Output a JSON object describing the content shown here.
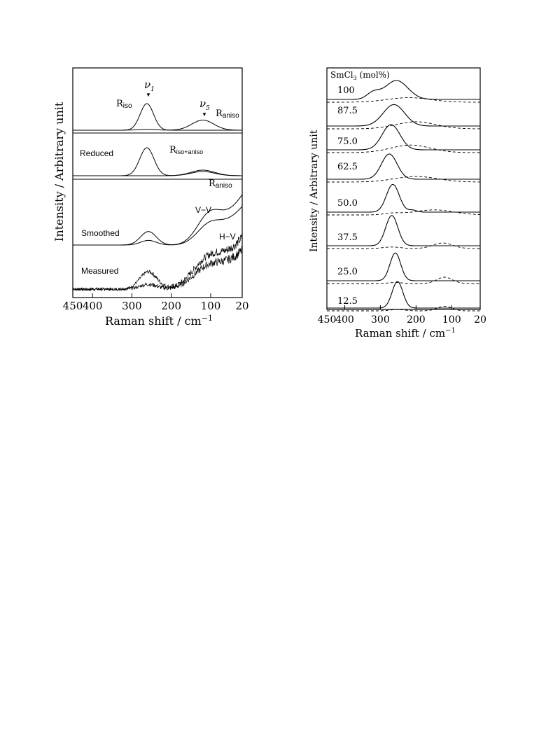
{
  "chart_data": [
    {
      "type": "line",
      "panel": "left",
      "xlabel": "Raman  shift  /  cm",
      "xlabel_sup": "−1",
      "ylabel": "Intensity / Arbitrary unit",
      "xlim": [
        450,
        20
      ],
      "xticks": [
        "450",
        "400",
        "300",
        "200",
        "100",
        "20"
      ],
      "xtick_values": [
        450,
        400,
        300,
        200,
        100,
        20
      ],
      "labels": {
        "nu1": "ν",
        "nu1_sub": "1",
        "nu5": "ν",
        "nu5_sub": "5",
        "riso": "R",
        "riso_sub": "iso",
        "raniso": "R",
        "raniso_sub": "aniso",
        "reduced": "Reduced",
        "risoaniso": "R",
        "risoaniso_sub": "iso+aniso",
        "raniso2": "R",
        "raniso2_sub": "aniso",
        "smoothed": "Smoothed",
        "vv": "V−V",
        "hv": "H−V",
        "measured": "Measured"
      },
      "series": [
        {
          "name": "R_iso",
          "group": "top",
          "peaks": [
            [
              262,
              1.0,
              17
            ]
          ],
          "baseline": 0
        },
        {
          "name": "R_aniso",
          "group": "top",
          "peaks": [
            [
              120,
              0.38,
              28
            ],
            [
              262,
              0.03,
              25
            ]
          ],
          "baseline": 0
        },
        {
          "name": "R_iso+aniso",
          "group": "reduced",
          "peaks": [
            [
              262,
              1.0,
              18
            ],
            [
              120,
              0.2,
              30
            ]
          ],
          "baseline": 0
        },
        {
          "name": "R_aniso (reduced)",
          "group": "reduced",
          "peaks": [
            [
              120,
              0.15,
              30
            ]
          ],
          "baseline": 0
        },
        {
          "name": "V−V",
          "group": "smoothed",
          "peaks": [
            [
              258,
              0.35,
              20
            ],
            [
              105,
              0.55,
              30
            ]
          ],
          "rise": 1.3
        },
        {
          "name": "H−V",
          "group": "smoothed",
          "peaks": [
            [
              258,
              0.12,
              20
            ],
            [
              105,
              0.35,
              30
            ]
          ],
          "rise": 1.0
        },
        {
          "name": "Measured V−V",
          "group": "measured",
          "peaks": [
            [
              258,
              0.55,
              22
            ],
            [
              110,
              0.7,
              40
            ]
          ],
          "rise": 1.6,
          "noise": true
        },
        {
          "name": "Measured H−V",
          "group": "measured",
          "peaks": [
            [
              258,
              0.15,
              22
            ],
            [
              110,
              0.5,
              40
            ]
          ],
          "rise": 1.2,
          "noise": true
        }
      ]
    },
    {
      "type": "line",
      "panel": "right",
      "legend_title": "SmCl",
      "legend_title_sub": "3",
      "legend_title_tail": " (mol%)",
      "xlabel": "Raman shift  /  cm",
      "xlabel_sup": "−1",
      "ylabel": "Intensity / Arbitrary unit",
      "xlim": [
        450,
        20
      ],
      "xticks": [
        "450",
        "400",
        "300",
        "200",
        "100",
        "20"
      ],
      "xtick_values": [
        450,
        400,
        300,
        200,
        100,
        20
      ],
      "series": [
        {
          "name": "100",
          "solid_peaks": [
            [
              255,
              0.75,
              32
            ],
            [
              320,
              0.25,
              18
            ]
          ],
          "dashed_peaks": [
            [
              220,
              0.18,
              60
            ]
          ]
        },
        {
          "name": "87.5",
          "solid_peaks": [
            [
              262,
              0.85,
              30
            ]
          ],
          "dashed_peaks": [
            [
              200,
              0.28,
              55
            ]
          ]
        },
        {
          "name": "75.0",
          "solid_peaks": [
            [
              270,
              1.0,
              25
            ]
          ],
          "dashed_peaks": [
            [
              215,
              0.3,
              55
            ]
          ]
        },
        {
          "name": "62.5",
          "solid_peaks": [
            [
              275,
              1.0,
              22
            ]
          ],
          "dashed_peaks": [
            [
              200,
              0.22,
              60
            ]
          ]
        },
        {
          "name": "50.0",
          "solid_peaks": [
            [
              265,
              1.1,
              18
            ],
            [
              210,
              0.08,
              12
            ]
          ],
          "dashed_peaks": [
            [
              150,
              0.2,
              55
            ],
            [
              265,
              0.06,
              25
            ]
          ]
        },
        {
          "name": "37.5",
          "solid_peaks": [
            [
              268,
              1.2,
              17
            ]
          ],
          "dashed_peaks": [
            [
              125,
              0.22,
              28
            ],
            [
              268,
              0.06,
              25
            ]
          ]
        },
        {
          "name": "25.0",
          "solid_peaks": [
            [
              258,
              1.1,
              15
            ]
          ],
          "dashed_peaks": [
            [
              120,
              0.25,
              22
            ],
            [
              258,
              0.04,
              20
            ]
          ]
        },
        {
          "name": "12.5",
          "solid_peaks": [
            [
              252,
              1.05,
              15
            ]
          ],
          "dashed_peaks": [
            [
              120,
              0.18,
              20
            ],
            [
              252,
              0.05,
              20
            ]
          ]
        }
      ]
    }
  ]
}
